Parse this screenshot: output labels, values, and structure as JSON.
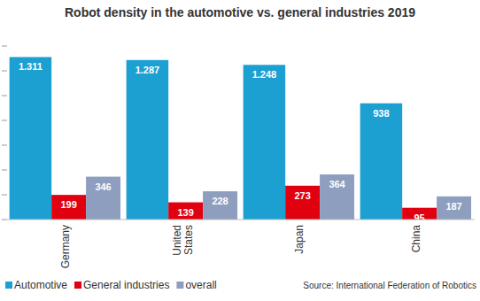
{
  "chart_data": {
    "type": "bar",
    "title": "Robot density in the automotive vs. general industries 2019",
    "categories": [
      "Germany",
      "United States",
      "Japan",
      "China"
    ],
    "series": [
      {
        "name": "Automotive",
        "color": "#1c9fd1",
        "values": [
          1311,
          1287,
          1248,
          938
        ],
        "value_labels": [
          "1.311",
          "1.287",
          "1.248",
          "938"
        ]
      },
      {
        "name": "General industries",
        "color": "#e1000f",
        "values": [
          199,
          139,
          273,
          95
        ]
      },
      {
        "name": "overall",
        "color": "#8e9ebe",
        "values": [
          346,
          228,
          364,
          187
        ]
      }
    ],
    "ylim": [
      0,
      1400
    ],
    "yticks": [
      0,
      200,
      400,
      600,
      800,
      1000,
      1200,
      1400
    ],
    "tick_labels": "x",
    "grid": false,
    "legend": "bottom-left",
    "data_labels": true,
    "annotations": [
      "Source: International Federation of Robotics"
    ]
  }
}
